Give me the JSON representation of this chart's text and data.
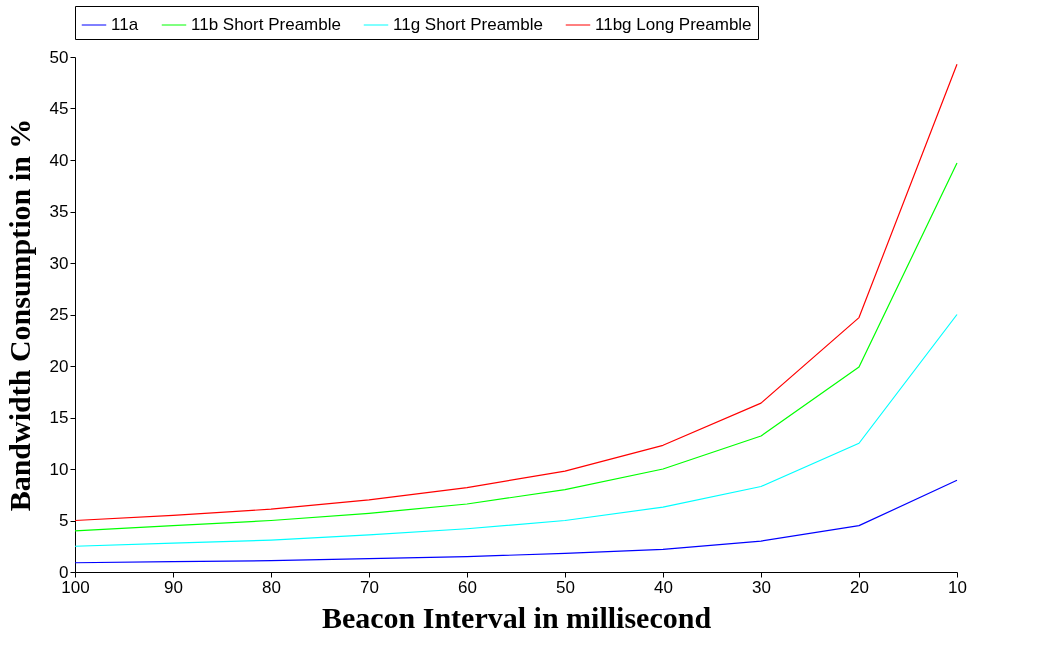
{
  "chart_data": {
    "type": "line",
    "xlabel": "Beacon Interval in millisecond",
    "ylabel": "Bandwidth Consumption in %",
    "x": [
      100,
      90,
      80,
      70,
      60,
      50,
      40,
      30,
      20,
      10
    ],
    "xlim": [
      100,
      10
    ],
    "xticks": [
      100,
      90,
      80,
      70,
      60,
      50,
      40,
      30,
      20,
      10
    ],
    "ylim": [
      0,
      50
    ],
    "yticks": [
      0,
      5,
      10,
      15,
      20,
      25,
      30,
      35,
      40,
      45,
      50
    ],
    "grid": false,
    "legend": "top",
    "line_style": "solid",
    "marker": "none",
    "series": [
      {
        "name": "11a",
        "color": "#0000ff",
        "values": [
          0.9,
          1.0,
          1.1,
          1.3,
          1.5,
          1.8,
          2.2,
          3.0,
          4.5,
          8.9
        ]
      },
      {
        "name": "11b Short Preamble",
        "color": "#00ff00",
        "values": [
          4.0,
          4.5,
          5.0,
          5.7,
          6.6,
          8.0,
          10.0,
          13.2,
          19.9,
          39.7
        ]
      },
      {
        "name": "11g Short Preamble",
        "color": "#00ffff",
        "values": [
          2.5,
          2.8,
          3.1,
          3.6,
          4.2,
          5.0,
          6.3,
          8.3,
          12.5,
          25.0
        ]
      },
      {
        "name": "11bg Long Preamble",
        "color": "#ff0000",
        "values": [
          5.0,
          5.5,
          6.1,
          7.0,
          8.2,
          9.8,
          12.3,
          16.4,
          24.7,
          49.3
        ]
      }
    ]
  }
}
